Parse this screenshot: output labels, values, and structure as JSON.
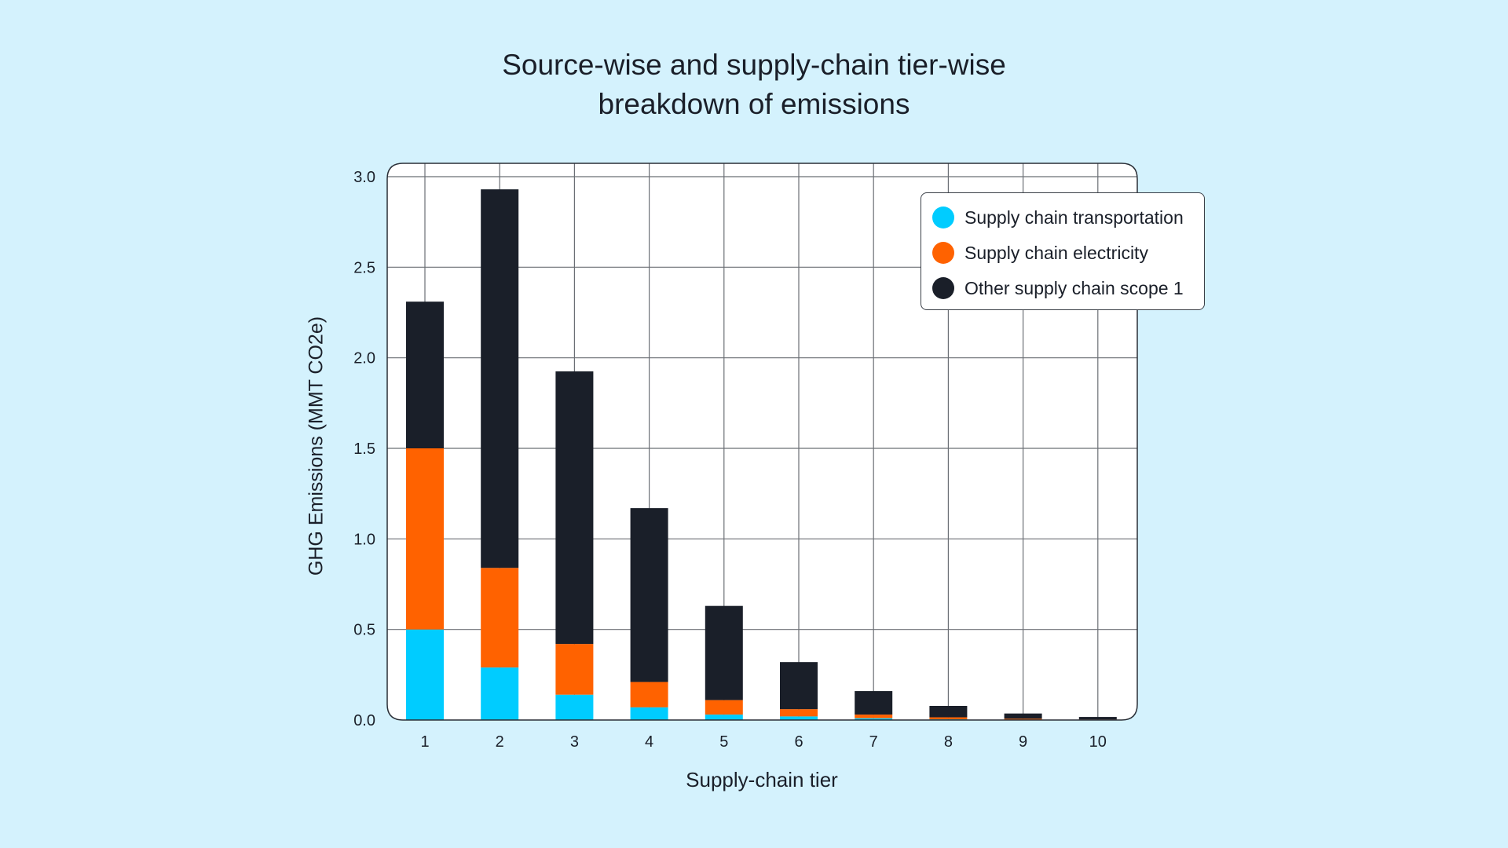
{
  "chart_data": {
    "type": "bar",
    "stacked": true,
    "title": [
      "Source-wise and supply-chain tier-wise",
      "breakdown of emissions"
    ],
    "xlabel": "Supply-chain tier",
    "ylabel": "GHG Emissions (MMT CO2e)",
    "categories": [
      "1",
      "2",
      "3",
      "4",
      "5",
      "6",
      "7",
      "8",
      "9",
      "10"
    ],
    "ylim": [
      0,
      3.0
    ],
    "yticks": [
      0.0,
      0.5,
      1.0,
      1.5,
      2.0,
      2.5,
      3.0
    ],
    "ytick_labels": [
      "0.0",
      "0.5",
      "1.0",
      "1.5",
      "2.0",
      "2.5",
      "3.0"
    ],
    "grid": true,
    "legend_position": "top-right",
    "series": [
      {
        "name": "Supply chain transportation",
        "color": "#00CCFF",
        "values": [
          0.5,
          0.29,
          0.14,
          0.07,
          0.03,
          0.02,
          0.01,
          0.004,
          0.002,
          0.001
        ]
      },
      {
        "name": "Supply chain electricity",
        "color": "#FF6200",
        "values": [
          1.0,
          0.55,
          0.28,
          0.14,
          0.08,
          0.04,
          0.02,
          0.011,
          0.005,
          0.002
        ]
      },
      {
        "name": "Other supply chain scope 1",
        "color": "#1A1F29",
        "values": [
          0.81,
          2.09,
          1.505,
          0.96,
          0.52,
          0.26,
          0.13,
          0.063,
          0.029,
          0.014
        ]
      }
    ]
  },
  "colors": {
    "background": "#D4F2FD",
    "plot_background": "#FFFFFF",
    "text": "#1A1F29"
  }
}
